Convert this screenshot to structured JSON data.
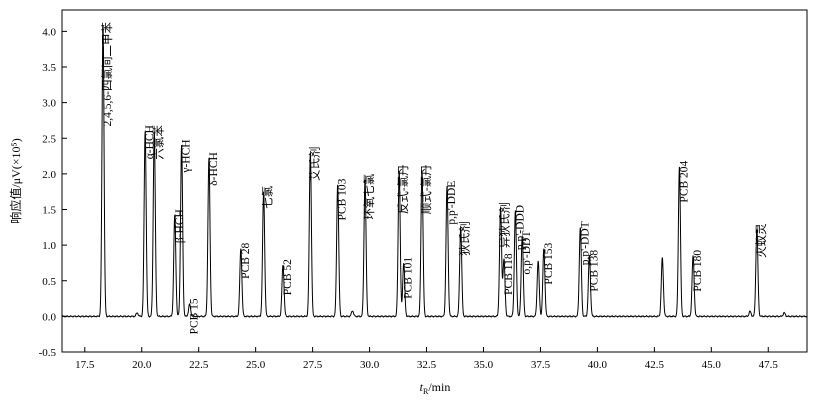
{
  "chart_data": {
    "type": "line",
    "xlabel": "tR/min",
    "xlabel_main": "t",
    "xlabel_sub": "R",
    "xlabel_unit": "/min",
    "ylabel": "响应值/μV(×10⁵)",
    "xlim": [
      16.5,
      49.2
    ],
    "ylim": [
      -0.5,
      4.3
    ],
    "x_ticks": [
      17.5,
      20.0,
      22.5,
      25.0,
      27.5,
      30.0,
      32.5,
      35.0,
      37.5,
      40.0,
      42.5,
      45.0,
      47.5
    ],
    "x_tick_labels": [
      "17.5",
      "20.0",
      "22.5",
      "25.0",
      "27.5",
      "30.0",
      "32.5",
      "35.0",
      "37.5",
      "40.0",
      "42.5",
      "45.0",
      "47.5"
    ],
    "y_ticks": [
      -0.5,
      0.0,
      0.5,
      1.0,
      1.5,
      2.0,
      2.5,
      3.0,
      3.5,
      4.0
    ],
    "y_tick_labels": [
      "-0.5",
      "0.0",
      "0.5",
      "1.0",
      "1.5",
      "2.0",
      "2.5",
      "3.0",
      "3.5",
      "4.0"
    ],
    "grid": false,
    "baseline": 0.0,
    "peaks": [
      {
        "x": 18.3,
        "y": 4.08,
        "label": "2,4,5,6-四氯间二甲苯"
      },
      {
        "x": 20.15,
        "y": 2.6,
        "label": "α-HCH"
      },
      {
        "x": 20.55,
        "y": 2.6,
        "label": "六氯苯"
      },
      {
        "x": 21.45,
        "y": 1.42,
        "label": "β-HCH"
      },
      {
        "x": 21.75,
        "y": 2.4,
        "label": "γ-HCH"
      },
      {
        "x": 22.1,
        "y": 0.17,
        "label": "PCB 15"
      },
      {
        "x": 22.95,
        "y": 2.22,
        "label": "δ-HCH"
      },
      {
        "x": 24.35,
        "y": 0.95,
        "label": "PCB 28"
      },
      {
        "x": 25.35,
        "y": 1.75,
        "label": "七氯"
      },
      {
        "x": 26.2,
        "y": 0.72,
        "label": "PCB 52"
      },
      {
        "x": 27.4,
        "y": 2.3,
        "label": "艾氏剂"
      },
      {
        "x": 28.6,
        "y": 1.85,
        "label": "PCB 103"
      },
      {
        "x": 29.8,
        "y": 1.92,
        "label": "环氧七氯"
      },
      {
        "x": 31.3,
        "y": 2.05,
        "label": "反式-氯丹"
      },
      {
        "x": 31.5,
        "y": 0.75,
        "label": "PCB 101"
      },
      {
        "x": 32.3,
        "y": 2.05,
        "label": "顺式-氯丹"
      },
      {
        "x": 33.4,
        "y": 1.82,
        "label": "p,p'-DDE"
      },
      {
        "x": 34.0,
        "y": 1.25,
        "label": "狄氏剂"
      },
      {
        "x": 35.75,
        "y": 1.52,
        "label": "异狄氏剂"
      },
      {
        "x": 35.9,
        "y": 0.8,
        "label": "PCB 118"
      },
      {
        "x": 36.4,
        "y": 1.48,
        "label": "p,p'-DDD"
      },
      {
        "x": 36.7,
        "y": 1.12,
        "label": "o,p'-DDT"
      },
      {
        "x": 37.4,
        "y": 0.78,
        "label": ""
      },
      {
        "x": 37.65,
        "y": 0.95,
        "label": "PCB 153"
      },
      {
        "x": 39.25,
        "y": 1.25,
        "label": "p,p'-DDT"
      },
      {
        "x": 39.65,
        "y": 0.85,
        "label": "PCB 138"
      },
      {
        "x": 42.85,
        "y": 0.82,
        "label": ""
      },
      {
        "x": 43.6,
        "y": 2.1,
        "label": "PCB 204"
      },
      {
        "x": 44.2,
        "y": 0.85,
        "label": "PCB 180"
      },
      {
        "x": 47.0,
        "y": 1.22,
        "label": "灭蚁灵"
      }
    ],
    "minor_peaks": [
      {
        "x": 19.8,
        "y": 0.05
      },
      {
        "x": 29.25,
        "y": 0.08
      },
      {
        "x": 46.7,
        "y": 0.07
      },
      {
        "x": 48.2,
        "y": 0.05
      }
    ]
  }
}
